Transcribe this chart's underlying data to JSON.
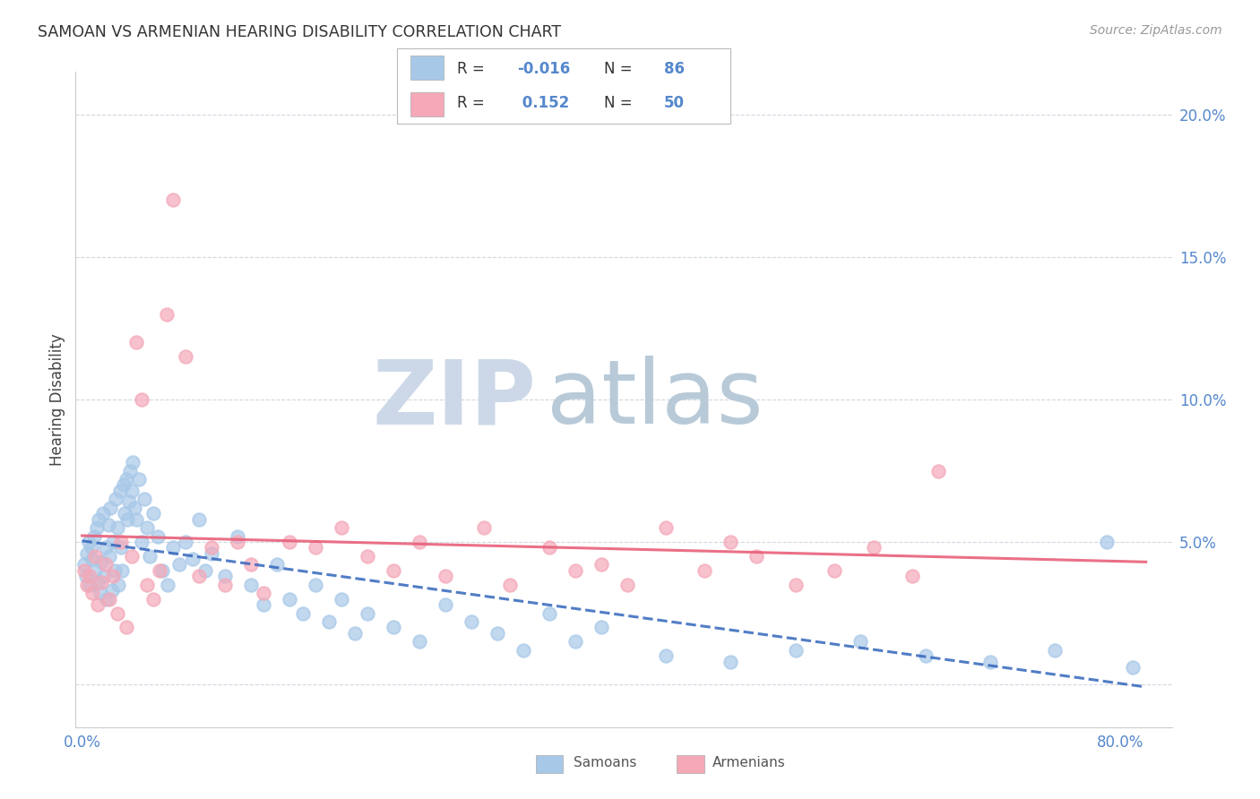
{
  "title": "SAMOAN VS ARMENIAN HEARING DISABILITY CORRELATION CHART",
  "source": "Source: ZipAtlas.com",
  "ylabel": "Hearing Disability",
  "xlim": [
    -0.005,
    0.84
  ],
  "ylim": [
    -0.015,
    0.215
  ],
  "samoans_R": -0.016,
  "samoans_N": 86,
  "armenians_R": 0.152,
  "armenians_N": 50,
  "samoans_color": "#a8c8e8",
  "armenians_color": "#f4a8b8",
  "samoans_line_color": "#3366bb",
  "armenians_line_color": "#e8607a",
  "background_color": "#ffffff",
  "grid_color": "#d0d8e0",
  "title_color": "#333333",
  "axis_color": "#5588cc",
  "legend_R_color": "#5588cc",
  "legend_N_color": "#5588cc",
  "watermark_ZIP_color": "#c8d8e8",
  "watermark_atlas_color": "#b8c8d8",
  "samoans_x": [
    0.002,
    0.003,
    0.004,
    0.005,
    0.006,
    0.007,
    0.008,
    0.009,
    0.01,
    0.011,
    0.012,
    0.013,
    0.014,
    0.015,
    0.016,
    0.017,
    0.018,
    0.019,
    0.02,
    0.021,
    0.022,
    0.023,
    0.024,
    0.025,
    0.026,
    0.027,
    0.028,
    0.029,
    0.03,
    0.031,
    0.032,
    0.033,
    0.034,
    0.035,
    0.036,
    0.037,
    0.038,
    0.039,
    0.04,
    0.042,
    0.044,
    0.046,
    0.048,
    0.05,
    0.052,
    0.055,
    0.058,
    0.062,
    0.066,
    0.07,
    0.075,
    0.08,
    0.085,
    0.09,
    0.095,
    0.1,
    0.11,
    0.12,
    0.13,
    0.14,
    0.15,
    0.16,
    0.17,
    0.18,
    0.19,
    0.2,
    0.21,
    0.22,
    0.24,
    0.26,
    0.28,
    0.3,
    0.32,
    0.34,
    0.36,
    0.38,
    0.4,
    0.45,
    0.5,
    0.55,
    0.6,
    0.65,
    0.7,
    0.75,
    0.79,
    0.81
  ],
  "samoans_y": [
    0.042,
    0.038,
    0.046,
    0.05,
    0.035,
    0.048,
    0.044,
    0.052,
    0.04,
    0.055,
    0.036,
    0.058,
    0.032,
    0.043,
    0.06,
    0.038,
    0.048,
    0.03,
    0.056,
    0.045,
    0.062,
    0.033,
    0.05,
    0.04,
    0.065,
    0.055,
    0.035,
    0.068,
    0.048,
    0.04,
    0.07,
    0.06,
    0.072,
    0.058,
    0.064,
    0.075,
    0.068,
    0.078,
    0.062,
    0.058,
    0.072,
    0.05,
    0.065,
    0.055,
    0.045,
    0.06,
    0.052,
    0.04,
    0.035,
    0.048,
    0.042,
    0.05,
    0.044,
    0.058,
    0.04,
    0.046,
    0.038,
    0.052,
    0.035,
    0.028,
    0.042,
    0.03,
    0.025,
    0.035,
    0.022,
    0.03,
    0.018,
    0.025,
    0.02,
    0.015,
    0.028,
    0.022,
    0.018,
    0.012,
    0.025,
    0.015,
    0.02,
    0.01,
    0.008,
    0.012,
    0.015,
    0.01,
    0.008,
    0.012,
    0.05,
    0.006
  ],
  "armenians_x": [
    0.002,
    0.004,
    0.006,
    0.008,
    0.01,
    0.012,
    0.015,
    0.018,
    0.021,
    0.024,
    0.027,
    0.03,
    0.034,
    0.038,
    0.042,
    0.046,
    0.05,
    0.055,
    0.06,
    0.065,
    0.07,
    0.08,
    0.09,
    0.1,
    0.11,
    0.12,
    0.13,
    0.14,
    0.16,
    0.18,
    0.2,
    0.22,
    0.24,
    0.26,
    0.28,
    0.31,
    0.33,
    0.36,
    0.38,
    0.4,
    0.42,
    0.45,
    0.48,
    0.5,
    0.52,
    0.55,
    0.58,
    0.61,
    0.64,
    0.66
  ],
  "armenians_y": [
    0.04,
    0.035,
    0.038,
    0.032,
    0.045,
    0.028,
    0.036,
    0.042,
    0.03,
    0.038,
    0.025,
    0.05,
    0.02,
    0.045,
    0.12,
    0.1,
    0.035,
    0.03,
    0.04,
    0.13,
    0.17,
    0.115,
    0.038,
    0.048,
    0.035,
    0.05,
    0.042,
    0.032,
    0.05,
    0.048,
    0.055,
    0.045,
    0.04,
    0.05,
    0.038,
    0.055,
    0.035,
    0.048,
    0.04,
    0.042,
    0.035,
    0.055,
    0.04,
    0.05,
    0.045,
    0.035,
    0.04,
    0.048,
    0.038,
    0.075
  ],
  "watermark_text_ZIP": "ZIP",
  "watermark_text_atlas": "atlas",
  "legend_sam_label": "R = -0.016   N = 86",
  "legend_arm_label": "R =  0.152   N = 50",
  "bottom_legend_samoans": "Samoans",
  "bottom_legend_armenians": "Armenians",
  "y_tick_vals": [
    0.0,
    0.05,
    0.1,
    0.15,
    0.2
  ],
  "y_tick_labels": [
    "",
    "5.0%",
    "10.0%",
    "15.0%",
    "20.0%"
  ],
  "x_tick_vals": [
    0.0,
    0.2,
    0.4,
    0.6,
    0.8
  ],
  "x_tick_labels": [
    "0.0%",
    "",
    "",
    "",
    "80.0%"
  ]
}
